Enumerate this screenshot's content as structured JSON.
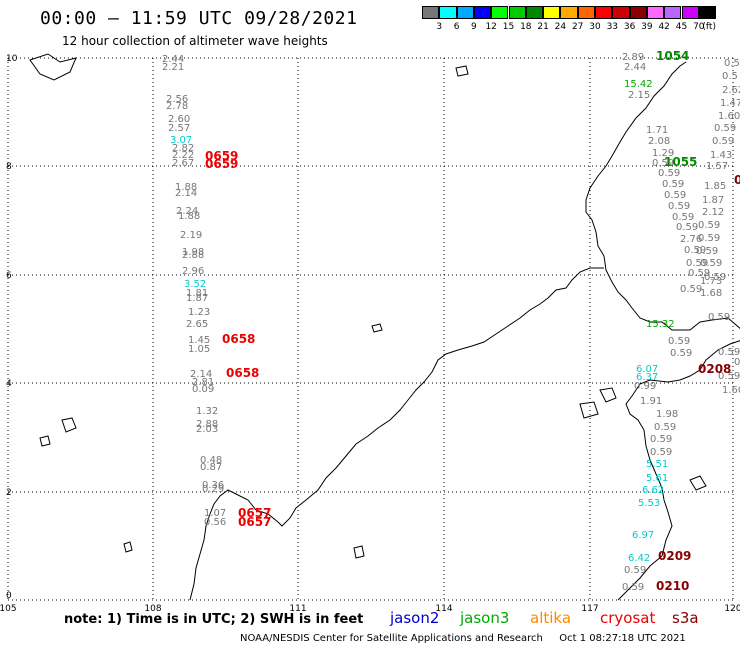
{
  "header": {
    "title": "00:00 — 11:59 UTC 09/28/2021",
    "subtitle": "12 hour collection of altimeter wave heights"
  },
  "colorbar": {
    "colors": [
      "#777777",
      "#00ffff",
      "#00aaff",
      "#0000ff",
      "#00ff00",
      "#00cc00",
      "#008800",
      "#ffff00",
      "#ffaa00",
      "#ff6600",
      "#ff0000",
      "#cc0000",
      "#880000",
      "#ff66ff",
      "#bb66ff",
      "#cc00ff",
      "#000000"
    ],
    "labels": [
      "3",
      "6",
      "9",
      "12",
      "15",
      "18",
      "21",
      "24",
      "27",
      "30",
      "33",
      "36",
      "39",
      "42",
      "45",
      "70",
      "(ft)"
    ]
  },
  "axes": {
    "x_ticks": [
      "105",
      "108",
      "111",
      "114",
      "117",
      "120"
    ],
    "y_ticks": [
      "0",
      "2",
      "4",
      "6",
      "8",
      "10"
    ]
  },
  "observations": [
    {
      "t": "2.44",
      "c": "#777777"
    },
    {
      "t": "2.21",
      "c": "#777777"
    },
    {
      "t": "2.56",
      "c": "#777777"
    },
    {
      "t": "2.78",
      "c": "#777777"
    },
    {
      "t": "2.60",
      "c": "#777777"
    },
    {
      "t": "2.57",
      "c": "#777777"
    },
    {
      "t": "3.07",
      "c": "#00cccc"
    },
    {
      "t": "2.82",
      "c": "#777777"
    },
    {
      "t": "2.22",
      "c": "#777777"
    },
    {
      "t": "2.67",
      "c": "#777777"
    },
    {
      "t": "1.88",
      "c": "#777777"
    },
    {
      "t": "2.14",
      "c": "#777777"
    },
    {
      "t": "2.24",
      "c": "#777777"
    },
    {
      "t": "1.88",
      "c": "#777777"
    },
    {
      "t": "2.19",
      "c": "#777777"
    },
    {
      "t": "1.98",
      "c": "#777777"
    },
    {
      "t": "2.88",
      "c": "#777777"
    },
    {
      "t": "2.96",
      "c": "#777777"
    },
    {
      "t": "3.52",
      "c": "#00cccc"
    },
    {
      "t": "1.81",
      "c": "#777777"
    },
    {
      "t": "1.87",
      "c": "#777777"
    },
    {
      "t": "1.23",
      "c": "#777777"
    },
    {
      "t": "2.65",
      "c": "#777777"
    },
    {
      "t": "1.45",
      "c": "#777777"
    },
    {
      "t": "1.05",
      "c": "#777777"
    },
    {
      "t": "2.14",
      "c": "#777777"
    },
    {
      "t": "2.81",
      "c": "#777777"
    },
    {
      "t": "0.09",
      "c": "#777777"
    },
    {
      "t": "1.32",
      "c": "#777777"
    },
    {
      "t": "2.88",
      "c": "#777777"
    },
    {
      "t": "2.03",
      "c": "#777777"
    },
    {
      "t": "0.48",
      "c": "#777777"
    },
    {
      "t": "0.87",
      "c": "#777777"
    },
    {
      "t": "0.36",
      "c": "#777777"
    },
    {
      "t": "0.29",
      "c": "#777777"
    },
    {
      "t": "1.07",
      "c": "#777777"
    },
    {
      "t": "0.56",
      "c": "#777777"
    },
    {
      "t": "2.89",
      "c": "#777777"
    },
    {
      "t": "2.44",
      "c": "#777777"
    },
    {
      "t": "15.42",
      "c": "#00aa00"
    },
    {
      "t": "2.15",
      "c": "#777777"
    },
    {
      "t": "1.71",
      "c": "#777777"
    },
    {
      "t": "2.08",
      "c": "#777777"
    },
    {
      "t": "1.29",
      "c": "#777777"
    },
    {
      "t": "0.59",
      "c": "#777777"
    },
    {
      "t": "0.59",
      "c": "#777777"
    },
    {
      "t": "0.59",
      "c": "#777777"
    },
    {
      "t": "0.59",
      "c": "#777777"
    },
    {
      "t": "0.59",
      "c": "#777777"
    },
    {
      "t": "0.59",
      "c": "#777777"
    },
    {
      "t": "0.59",
      "c": "#777777"
    },
    {
      "t": "2.76",
      "c": "#777777"
    },
    {
      "t": "0.59",
      "c": "#777777"
    },
    {
      "t": "0.59",
      "c": "#777777"
    },
    {
      "t": "0.59",
      "c": "#777777"
    },
    {
      "t": "0.59",
      "c": "#777777"
    },
    {
      "t": "15.32",
      "c": "#00aa00"
    },
    {
      "t": "0.59",
      "c": "#777777"
    },
    {
      "t": "0.59",
      "c": "#777777"
    },
    {
      "t": "6.07",
      "c": "#00cccc"
    },
    {
      "t": "6.37",
      "c": "#00cccc"
    },
    {
      "t": "0.99",
      "c": "#777777"
    },
    {
      "t": "1.91",
      "c": "#777777"
    },
    {
      "t": "1.98",
      "c": "#777777"
    },
    {
      "t": "0.59",
      "c": "#777777"
    },
    {
      "t": "0.59",
      "c": "#777777"
    },
    {
      "t": "0.59",
      "c": "#777777"
    },
    {
      "t": "5.51",
      "c": "#00cccc"
    },
    {
      "t": "5.61",
      "c": "#00cccc"
    },
    {
      "t": "6.62",
      "c": "#00cccc"
    },
    {
      "t": "5.53",
      "c": "#00cccc"
    },
    {
      "t": "6.97",
      "c": "#00cccc"
    },
    {
      "t": "6.42",
      "c": "#00cccc"
    },
    {
      "t": "0.59",
      "c": "#777777"
    },
    {
      "t": "0.59",
      "c": "#777777"
    },
    {
      "t": "0.5",
      "c": "#777777"
    },
    {
      "t": "0.5",
      "c": "#777777"
    },
    {
      "t": "2.62",
      "c": "#777777"
    },
    {
      "t": "1.47",
      "c": "#777777"
    },
    {
      "t": "1.60",
      "c": "#777777"
    },
    {
      "t": "0.59",
      "c": "#777777"
    },
    {
      "t": "0.59",
      "c": "#777777"
    },
    {
      "t": "1.43",
      "c": "#777777"
    },
    {
      "t": "1.57",
      "c": "#777777"
    },
    {
      "t": "1.85",
      "c": "#777777"
    },
    {
      "t": "1.87",
      "c": "#777777"
    },
    {
      "t": "2.12",
      "c": "#777777"
    },
    {
      "t": "0.59",
      "c": "#777777"
    },
    {
      "t": "0.59",
      "c": "#777777"
    },
    {
      "t": "0.59",
      "c": "#777777"
    },
    {
      "t": "0.59",
      "c": "#777777"
    },
    {
      "t": "1.73",
      "c": "#777777"
    },
    {
      "t": "1.68",
      "c": "#777777"
    },
    {
      "t": "0.59",
      "c": "#777777"
    },
    {
      "t": "0.59",
      "c": "#777777"
    },
    {
      "t": "0.59",
      "c": "#777777"
    },
    {
      "t": "1.60",
      "c": "#777777"
    },
    {
      "t": "0.59",
      "c": "#777777"
    },
    {
      "t": "0.5",
      "c": "#777777"
    }
  ],
  "time_labels": [
    {
      "t": "0659",
      "c": "#ee0000"
    },
    {
      "t": "0659",
      "c": "#ee0000"
    },
    {
      "t": "0658",
      "c": "#ee0000"
    },
    {
      "t": "0658",
      "c": "#ee0000"
    },
    {
      "t": "0657",
      "c": "#ee0000"
    },
    {
      "t": "0657",
      "c": "#ee0000"
    },
    {
      "t": "1054",
      "c": "#008800"
    },
    {
      "t": "1055",
      "c": "#008800"
    },
    {
      "t": "0208",
      "c": "#880000"
    },
    {
      "t": "0209",
      "c": "#880000"
    },
    {
      "t": "0210",
      "c": "#880000"
    },
    {
      "t": "0",
      "c": "#880000"
    }
  ],
  "legend": {
    "note": "note: 1) Time is in UTC; 2) SWH is in feet",
    "satellites": [
      {
        "name": "jason2",
        "color": "#0000cc"
      },
      {
        "name": "jason3",
        "color": "#00aa00"
      },
      {
        "name": "altika",
        "color": "#ff8800"
      },
      {
        "name": "cryosat",
        "color": "#ee0000"
      },
      {
        "name": "s3a",
        "color": "#880000"
      }
    ]
  },
  "footer": {
    "credit": "NOAA/NESDIS Center for Satellite Applications and Research",
    "timestamp": "Oct  1 08:27:18 UTC 2021"
  }
}
